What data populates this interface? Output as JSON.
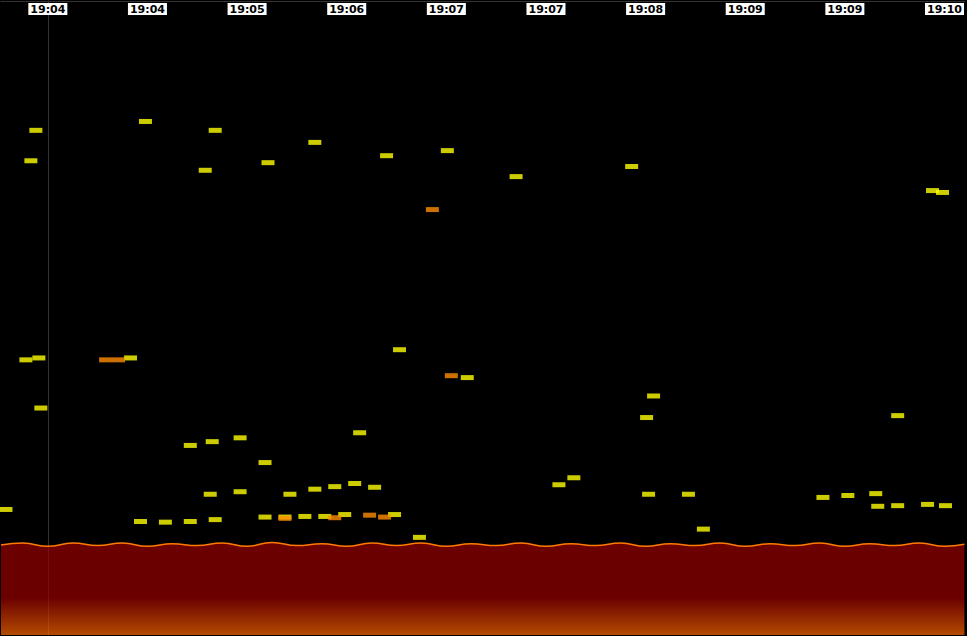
{
  "chart_data": {
    "type": "scatter",
    "xlim": [
      -0.47,
      9.2
    ],
    "xticks": [
      {
        "value": 0,
        "label": "19:04"
      },
      {
        "value": 1,
        "label": "19:04"
      },
      {
        "value": 2,
        "label": "19:05"
      },
      {
        "value": 3,
        "label": "19:06"
      },
      {
        "value": 4,
        "label": "19:07"
      },
      {
        "value": 5,
        "label": "19:07"
      },
      {
        "value": 6,
        "label": "19:08"
      },
      {
        "value": 7,
        "label": "19:09"
      },
      {
        "value": 8,
        "label": "19:09"
      },
      {
        "value": 9,
        "label": "19:10"
      }
    ],
    "ylim": [
      0,
      100
    ],
    "tick_labels": "x",
    "grid": false,
    "series": [
      {
        "type": "scatter",
        "color": "#ffff00",
        "marker": "rect",
        "values": [
          [
            0.83,
            56.3
          ],
          [
            -0.22,
            56.6
          ],
          [
            -0.09,
            56.3
          ],
          [
            4.7,
            27.7
          ],
          [
            5.86,
            26.1
          ],
          [
            8.88,
            29.9
          ],
          [
            8.98,
            30.2
          ],
          [
            4.21,
            59.4
          ],
          [
            3.53,
            55.0
          ],
          [
            6.01,
            65.7
          ],
          [
            1.43,
            70.1
          ],
          [
            1.65,
            69.5
          ],
          [
            2.18,
            72.8
          ],
          [
            5.28,
            75.2
          ],
          [
            5.13,
            76.3
          ],
          [
            8.53,
            65.4
          ],
          [
            2.18,
            81.4
          ],
          [
            2.38,
            81.4
          ],
          [
            2.58,
            81.3
          ],
          [
            2.78,
            81.3
          ],
          [
            2.98,
            81.0
          ],
          [
            3.48,
            81.0
          ],
          [
            2.43,
            77.8
          ],
          [
            2.68,
            77.0
          ],
          [
            2.88,
            76.6
          ],
          [
            3.08,
            76.1
          ],
          [
            3.28,
            76.7
          ],
          [
            0.93,
            82.1
          ],
          [
            1.18,
            82.2
          ],
          [
            1.43,
            82.1
          ],
          [
            1.68,
            81.8
          ],
          [
            1.63,
            77.8
          ],
          [
            1.93,
            77.4
          ],
          [
            6.03,
            77.8
          ],
          [
            6.43,
            77.8
          ],
          [
            6.58,
            83.3
          ],
          [
            7.78,
            78.3
          ],
          [
            8.03,
            78.0
          ],
          [
            8.31,
            77.7
          ],
          [
            8.33,
            79.7
          ],
          [
            8.53,
            79.6
          ],
          [
            8.83,
            79.4
          ],
          [
            9.01,
            79.6
          ],
          [
            3.73,
            84.6
          ],
          [
            -0.12,
            20.4
          ],
          [
            0.98,
            19.0
          ],
          [
            1.68,
            20.4
          ],
          [
            2.68,
            22.3
          ],
          [
            3.4,
            24.4
          ],
          [
            4.01,
            23.6
          ],
          [
            2.21,
            25.5
          ],
          [
            -0.17,
            25.2
          ],
          [
            1.58,
            26.7
          ],
          [
            -0.07,
            64.2
          ],
          [
            -0.42,
            80.2
          ],
          [
            1.93,
            68.9
          ],
          [
            3.13,
            68.1
          ],
          [
            6.08,
            62.3
          ]
        ]
      },
      {
        "type": "scatter",
        "color": "#ff8c00",
        "marker": "rect",
        "values": [
          [
            0.71,
            56.6
          ],
          [
            0.58,
            56.6
          ],
          [
            3.86,
            32.9
          ],
          [
            4.05,
            59.1
          ],
          [
            3.23,
            81.1
          ],
          [
            3.38,
            81.4
          ],
          [
            2.38,
            81.6
          ],
          [
            2.88,
            81.5
          ]
        ]
      },
      {
        "type": "area",
        "color": "#990000",
        "values": [
          [
            -0.47,
            85.8
          ],
          [
            -0.25,
            85.5
          ],
          [
            0,
            86.0
          ],
          [
            0.25,
            85.5
          ],
          [
            0.5,
            85.9
          ],
          [
            0.75,
            85.5
          ],
          [
            1,
            86.0
          ],
          [
            1.25,
            85.6
          ],
          [
            1.5,
            85.9
          ],
          [
            1.75,
            85.5
          ],
          [
            2,
            86.0
          ],
          [
            2.25,
            85.4
          ],
          [
            2.5,
            85.9
          ],
          [
            2.75,
            85.6
          ],
          [
            3,
            86.0
          ],
          [
            3.25,
            85.5
          ],
          [
            3.5,
            85.9
          ],
          [
            3.75,
            85.5
          ],
          [
            4,
            86.0
          ],
          [
            4.25,
            85.6
          ],
          [
            4.5,
            85.9
          ],
          [
            4.75,
            85.5
          ],
          [
            5,
            86.0
          ],
          [
            5.25,
            85.6
          ],
          [
            5.5,
            85.9
          ],
          [
            5.75,
            85.5
          ],
          [
            6,
            86.0
          ],
          [
            6.25,
            85.6
          ],
          [
            6.5,
            85.9
          ],
          [
            6.75,
            85.5
          ],
          [
            7,
            86.0
          ],
          [
            7.25,
            85.6
          ],
          [
            7.5,
            85.9
          ],
          [
            7.75,
            85.5
          ],
          [
            8,
            86.0
          ],
          [
            8.25,
            85.6
          ],
          [
            8.5,
            85.9
          ],
          [
            8.75,
            85.5
          ],
          [
            9,
            86.0
          ],
          [
            9.2,
            85.7
          ]
        ]
      }
    ]
  }
}
